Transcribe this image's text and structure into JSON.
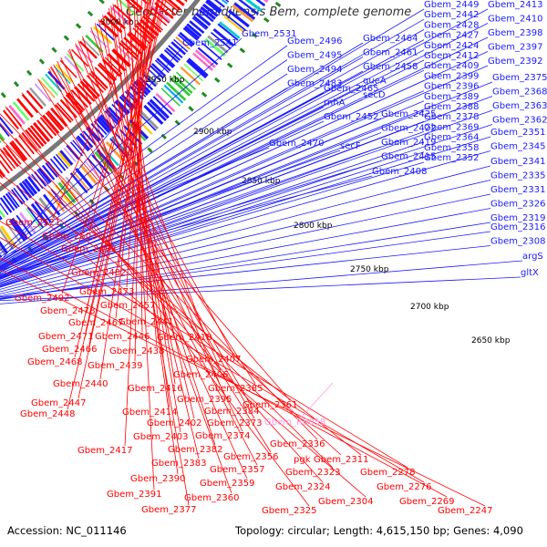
{
  "title": "Geobacter bemidjiensis Bem, complete genome",
  "accession": "Accession: NC_011146",
  "summary": "Topology: circular; Length: 4,615,150 bp; Genes: 4,090",
  "colors": {
    "forward": "#1a1aff",
    "reverse": "#ff0000",
    "rna": "#ff9ae0",
    "backbone": "#777777",
    "tick": "#228b22"
  },
  "position_labels": [
    "3000 kbp",
    "2950 kbp",
    "2900 kbp",
    "2850 kbp",
    "2800 kbp",
    "2750 kbp",
    "2700 kbp",
    "2650 kbp"
  ],
  "forward_genes": [
    "Gbem_2449",
    "Gbem_2413",
    "Gbem_2442",
    "Gbem_2410",
    "Gbem_2398",
    "Gbem_2531",
    "Gbem_2496",
    "Gbem_2464",
    "Gbem_2428",
    "Gbem_2397",
    "Gbem_2541",
    "Gbem_2495",
    "Gbem_2461",
    "Gbem_2427",
    "Gbem_2494",
    "Gbem_2458",
    "Gbem_2424",
    "Gbem_2392",
    "Gbem_2483",
    "queA",
    "Gbem_2412",
    "Gbem_2375",
    "Gbem_2465",
    "secD",
    "Gbem_2409",
    "Gbem_2368",
    "rnhA",
    "Gbem_2425",
    "Gbem_2399",
    "Gbem_2363",
    "Gbem_2452",
    "Gbem_2422",
    "Gbem_2396",
    "Gbem_2362",
    "Gbem_2470",
    "secF",
    "Gbem_2419",
    "Gbem_2389",
    "Gbem_2351",
    "Gbem_2415",
    "Gbem_2388",
    "Gbem_2345",
    "Gbem_2378",
    "Gbem_2341",
    "Gbem_2408",
    "Gbem_2369",
    "Gbem_2335",
    "Gbem_2364",
    "Gbem_2331",
    "Gbem_2358",
    "Gbem_2326",
    "Gbem_2319",
    "Gbem_2352",
    "Gbem_2316",
    "Gbem_2308",
    "argS",
    "gltX"
  ],
  "reverse_genes": [
    "Gbem_2521",
    "Gbem_2503",
    "Gbem_2493",
    "Gbem_2482",
    "Gbem_2492",
    "Gbem_2473",
    "Gbem_2478",
    "Gbem_2457",
    "Gbem_2467",
    "Gbem_2441",
    "Gbem_2471",
    "Gbem_2446",
    "Gbem_2418",
    "Gbem_2466",
    "Gbem_2438",
    "Gbem_2468",
    "Gbem_2439",
    "Gbem_2407",
    "Gbem_2406",
    "Gbem_2440",
    "Gbem_2416",
    "Gbem_2385",
    "Gbem_2447",
    "Gbem_2395",
    "Gbem_2448",
    "Gbem_2414",
    "Gbem_2384",
    "Gbem_2361",
    "Gbem_2402",
    "Gbem_2373",
    "Gbem_2403",
    "Gbem_2374",
    "Gbem_2417",
    "Gbem_2382",
    "Gbem_2336",
    "Gbem_2356",
    "Gbem_2383",
    "Gbem_2357",
    "pgk",
    "Gbem_2311",
    "Gbem_2390",
    "Gbem_2359",
    "Gbem_2323",
    "Gbem_2278",
    "Gbem_2391",
    "Gbem_2360",
    "Gbem_2324",
    "Gbem_2276",
    "Gbem_2304",
    "Gbem_2269",
    "Gbem_2377",
    "Gbem_2325",
    "Gbem_2247"
  ],
  "rna_genes": [
    "Gbem_R0058"
  ]
}
